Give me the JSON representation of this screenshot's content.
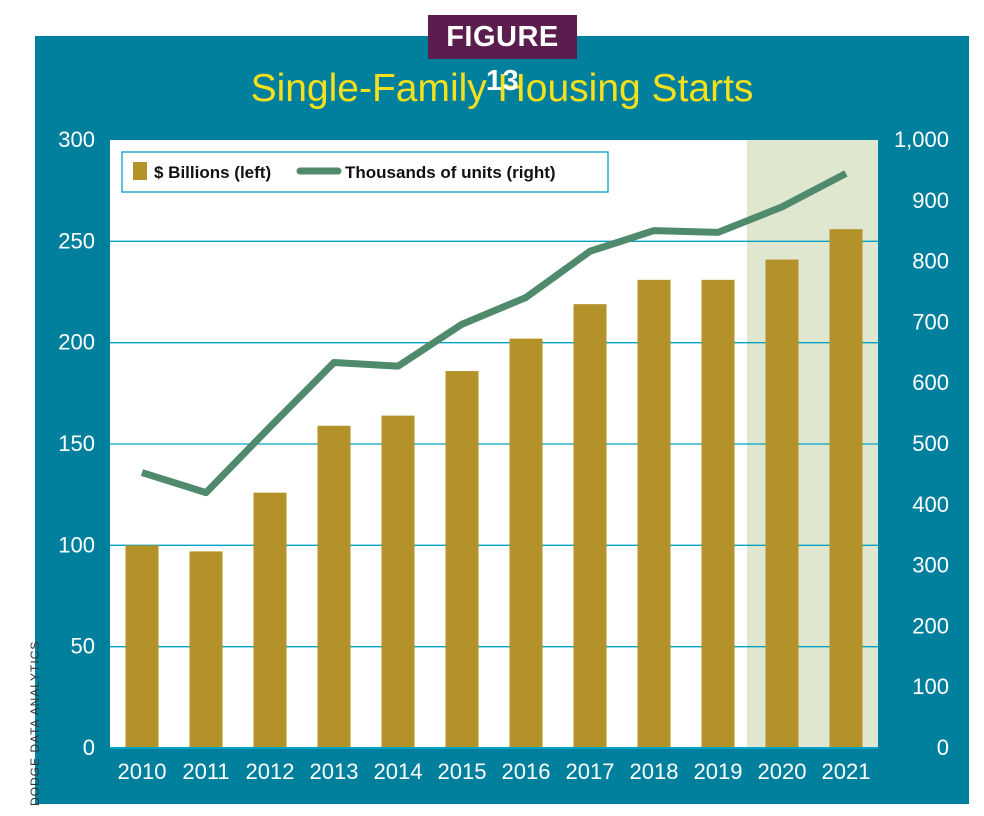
{
  "figure_label": "FIGURE 13",
  "source_credit": "DODGE DATA ANALYTICS",
  "colors": {
    "panel": "#00809d",
    "badge": "#5b1d4d",
    "title": "#f4e01c",
    "plot_bg": "#ffffff",
    "forecast_bg": "#dfe7d1",
    "bar": "#b3922a",
    "line": "#4f8a6c",
    "grid": "#00a2c5"
  },
  "chart_data": {
    "type": "bar",
    "title": "Single-Family Housing Starts",
    "categories": [
      "2010",
      "2011",
      "2012",
      "2013",
      "2014",
      "2015",
      "2016",
      "2017",
      "2018",
      "2019",
      "2020",
      "2021"
    ],
    "series": [
      {
        "name": "$ Billions (left)",
        "type": "bar",
        "axis": "left",
        "values": [
          100,
          97,
          126,
          159,
          164,
          186,
          202,
          219,
          231,
          231,
          241,
          256
        ]
      },
      {
        "name": "Thousands of units (right)",
        "type": "line",
        "axis": "right",
        "values": [
          453,
          420,
          528,
          634,
          628,
          697,
          741,
          817,
          851,
          848,
          890,
          945
        ]
      }
    ],
    "ylim_left": [
      0,
      300
    ],
    "yticks_left": [
      "0",
      "50",
      "100",
      "150",
      "200",
      "250",
      "300"
    ],
    "ylim_right": [
      0,
      1000
    ],
    "yticks_right": [
      "0",
      "100",
      "200",
      "300",
      "400",
      "500",
      "600",
      "700",
      "800",
      "900",
      "1,000"
    ],
    "forecast_categories": [
      "2020",
      "2021"
    ],
    "grid": true,
    "legend_position": "top-left"
  }
}
